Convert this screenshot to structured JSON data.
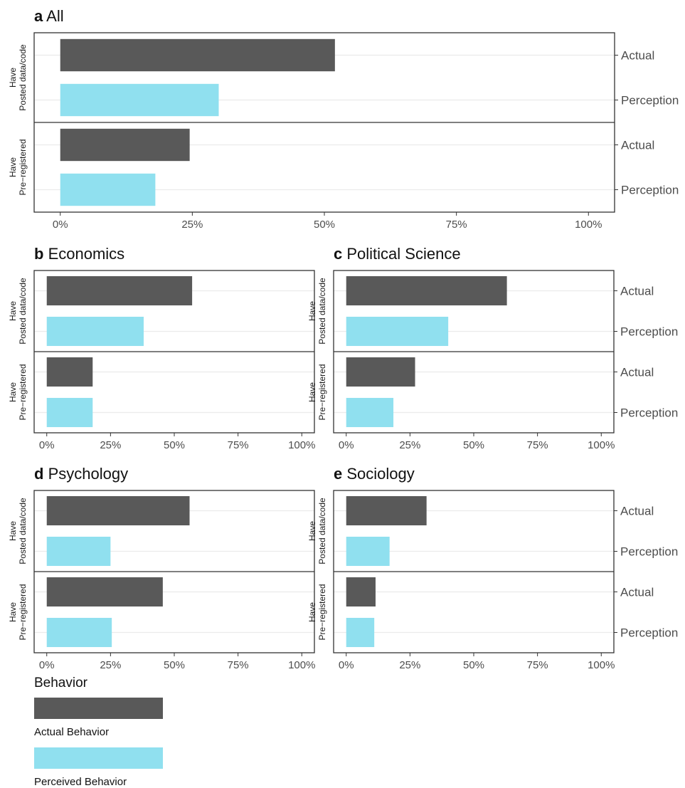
{
  "chart_data": [
    {
      "type": "bar",
      "panel_letter": "a",
      "title": "All",
      "facets": [
        "Have\nPosted data/code",
        "Have\nPre-registered"
      ],
      "categories": [
        "Actual",
        "Perception"
      ],
      "series": [
        {
          "facet": "Have\nPosted data/code",
          "values": [
            52,
            30
          ]
        },
        {
          "facet": "Have\nPre-registered",
          "values": [
            24.5,
            18
          ]
        }
      ],
      "xlim": [
        0,
        100
      ],
      "xticks": [
        "0%",
        "25%",
        "50%",
        "75%",
        "100%"
      ],
      "grid": true
    },
    {
      "type": "bar",
      "panel_letter": "b",
      "title": "Economics",
      "facets": [
        "Have\nPosted data/code",
        "Have\nPre-registered"
      ],
      "categories": [
        "Actual",
        "Perception"
      ],
      "series": [
        {
          "facet": "Have\nPosted data/code",
          "values": [
            57,
            38
          ]
        },
        {
          "facet": "Have\nPre-registered",
          "values": [
            18,
            18
          ]
        }
      ],
      "xlim": [
        0,
        100
      ],
      "xticks": [
        "0%",
        "25%",
        "50%",
        "75%",
        "100%"
      ],
      "grid": true
    },
    {
      "type": "bar",
      "panel_letter": "c",
      "title": "Political Science",
      "facets": [
        "Have\nPosted data/code",
        "Have\nPre-registered"
      ],
      "categories": [
        "Actual",
        "Perception"
      ],
      "series": [
        {
          "facet": "Have\nPosted data/code",
          "values": [
            63,
            40
          ]
        },
        {
          "facet": "Have\nPre-registered",
          "values": [
            27,
            18.5
          ]
        }
      ],
      "xlim": [
        0,
        100
      ],
      "xticks": [
        "0%",
        "25%",
        "50%",
        "75%",
        "100%"
      ],
      "grid": true
    },
    {
      "type": "bar",
      "panel_letter": "d",
      "title": "Psychology",
      "facets": [
        "Have\nPosted data/code",
        "Have\nPre-registered"
      ],
      "categories": [
        "Actual",
        "Perception"
      ],
      "series": [
        {
          "facet": "Have\nPosted data/code",
          "values": [
            56,
            25
          ]
        },
        {
          "facet": "Have\nPre-registered",
          "values": [
            45.5,
            25.5
          ]
        }
      ],
      "xlim": [
        0,
        100
      ],
      "xticks": [
        "0%",
        "25%",
        "50%",
        "75%",
        "100%"
      ],
      "grid": true
    },
    {
      "type": "bar",
      "panel_letter": "e",
      "title": "Sociology",
      "facets": [
        "Have\nPosted data/code",
        "Have\nPre-registered"
      ],
      "categories": [
        "Actual",
        "Perception"
      ],
      "series": [
        {
          "facet": "Have\nPosted data/code",
          "values": [
            31.5,
            17
          ]
        },
        {
          "facet": "Have\nPre-registered",
          "values": [
            11.5,
            11
          ]
        }
      ],
      "xlim": [
        0,
        100
      ],
      "xticks": [
        "0%",
        "25%",
        "50%",
        "75%",
        "100%"
      ],
      "grid": true
    }
  ],
  "legend": {
    "title": "Behavior",
    "position": "bottom-left",
    "items": [
      {
        "label": "Actual Behavior",
        "color": "#595959"
      },
      {
        "label": "Perceived Behavior",
        "color": "#90e0ef"
      }
    ]
  },
  "colors": {
    "actual": "#595959",
    "perception": "#90e0ef",
    "grid": "#ebebeb",
    "panel_border": "#333333",
    "tick_text": "#4d4d4d"
  }
}
